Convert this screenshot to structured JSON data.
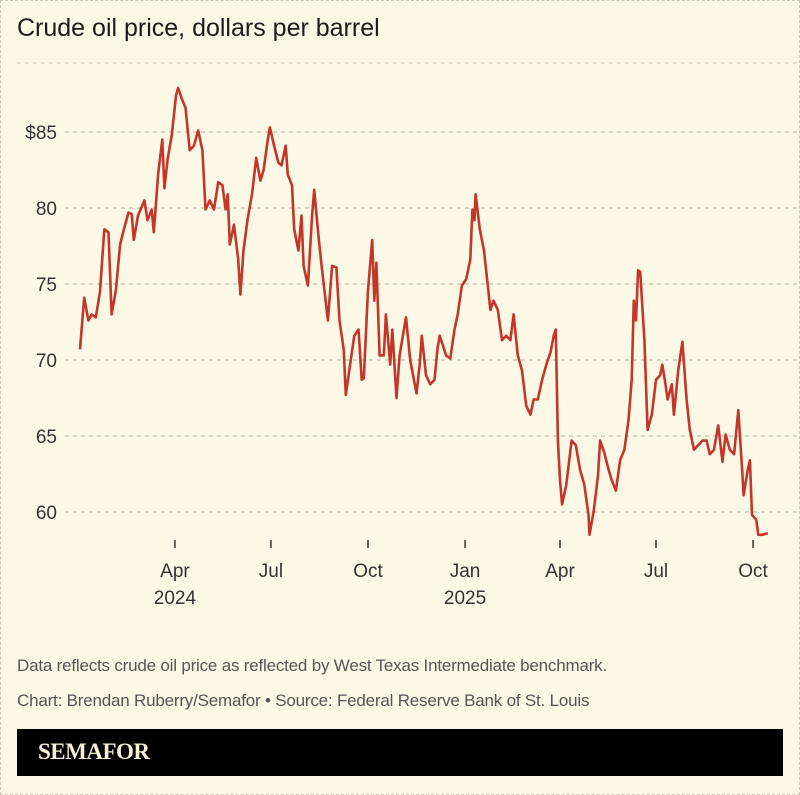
{
  "title": "Crude oil price, dollars per barrel",
  "footnote": "Data reflects crude oil price as reflected by West Texas Intermediate benchmark.",
  "credit": "Chart: Brendan Ruberry/Semafor • Source: Federal Reserve Bank of St. Louis",
  "brand": "SEMAFOR",
  "colors": {
    "line": "#c3372a",
    "background": "#fbf8e6",
    "grid": "#b5b2a3",
    "brand_bar": "#000000"
  },
  "chart_data": {
    "type": "line",
    "title": "Crude oil price, dollars per barrel",
    "xlabel": "",
    "ylabel": "",
    "ylim": [
      57.5,
      89.5
    ],
    "grid": true,
    "yticks": [
      {
        "value": 85,
        "label": "$85"
      },
      {
        "value": 80,
        "label": "80"
      },
      {
        "value": 75,
        "label": "75"
      },
      {
        "value": 70,
        "label": "70"
      },
      {
        "value": 65,
        "label": "65"
      },
      {
        "value": 60,
        "label": "60"
      }
    ],
    "xticks": [
      {
        "date": "2024-04-01",
        "label": "Apr",
        "year": "2024"
      },
      {
        "date": "2024-07-01",
        "label": "Jul",
        "year": ""
      },
      {
        "date": "2024-10-01",
        "label": "Oct",
        "year": ""
      },
      {
        "date": "2025-01-01",
        "label": "Jan",
        "year": "2025"
      },
      {
        "date": "2025-04-01",
        "label": "Apr",
        "year": ""
      },
      {
        "date": "2025-07-01",
        "label": "Jul",
        "year": ""
      },
      {
        "date": "2025-10-01",
        "label": "Oct",
        "year": ""
      }
    ],
    "series": [
      {
        "points": [
          [
            "2024-01-02",
            70.7
          ],
          [
            "2024-01-06",
            74.1
          ],
          [
            "2024-01-10",
            72.6
          ],
          [
            "2024-01-13",
            73.0
          ],
          [
            "2024-01-17",
            72.8
          ],
          [
            "2024-01-21",
            74.5
          ],
          [
            "2024-01-25",
            78.6
          ],
          [
            "2024-01-29",
            78.4
          ],
          [
            "2024-02-01",
            73.0
          ],
          [
            "2024-02-05",
            74.6
          ],
          [
            "2024-02-09",
            77.6
          ],
          [
            "2024-02-13",
            78.7
          ],
          [
            "2024-02-17",
            79.7
          ],
          [
            "2024-02-20",
            79.6
          ],
          [
            "2024-02-22",
            77.9
          ],
          [
            "2024-02-26",
            79.5
          ],
          [
            "2024-03-03",
            80.5
          ],
          [
            "2024-03-06",
            79.2
          ],
          [
            "2024-03-10",
            79.9
          ],
          [
            "2024-03-12",
            78.4
          ],
          [
            "2024-03-16",
            82.2
          ],
          [
            "2024-03-20",
            84.5
          ],
          [
            "2024-03-22",
            81.3
          ],
          [
            "2024-03-25",
            83.2
          ],
          [
            "2024-03-29",
            84.8
          ],
          [
            "2024-04-02",
            87.4
          ],
          [
            "2024-04-04",
            87.9
          ],
          [
            "2024-04-08",
            87.1
          ],
          [
            "2024-04-11",
            86.6
          ],
          [
            "2024-04-15",
            83.8
          ],
          [
            "2024-04-19",
            84.1
          ],
          [
            "2024-04-23",
            85.1
          ],
          [
            "2024-04-27",
            83.8
          ],
          [
            "2024-04-30",
            79.9
          ],
          [
            "2024-05-04",
            80.5
          ],
          [
            "2024-05-08",
            79.9
          ],
          [
            "2024-05-12",
            81.7
          ],
          [
            "2024-05-16",
            81.5
          ],
          [
            "2024-05-19",
            79.9
          ],
          [
            "2024-05-21",
            80.9
          ],
          [
            "2024-05-23",
            77.6
          ],
          [
            "2024-05-27",
            78.9
          ],
          [
            "2024-05-31",
            76.6
          ],
          [
            "2024-06-02",
            74.3
          ],
          [
            "2024-06-05",
            77.2
          ],
          [
            "2024-06-09",
            79.3
          ],
          [
            "2024-06-13",
            80.9
          ],
          [
            "2024-06-17",
            83.3
          ],
          [
            "2024-06-21",
            81.8
          ],
          [
            "2024-06-24",
            82.5
          ],
          [
            "2024-06-28",
            84.5
          ],
          [
            "2024-06-30",
            85.3
          ],
          [
            "2024-07-04",
            84.1
          ],
          [
            "2024-07-08",
            83.0
          ],
          [
            "2024-07-11",
            82.8
          ],
          [
            "2024-07-15",
            84.1
          ],
          [
            "2024-07-17",
            82.2
          ],
          [
            "2024-07-21",
            81.5
          ],
          [
            "2024-07-23",
            78.6
          ],
          [
            "2024-07-27",
            77.2
          ],
          [
            "2024-07-30",
            79.5
          ],
          [
            "2024-08-01",
            76.2
          ],
          [
            "2024-08-05",
            74.9
          ],
          [
            "2024-08-09",
            79.5
          ],
          [
            "2024-08-11",
            81.2
          ],
          [
            "2024-08-15",
            78.2
          ],
          [
            "2024-08-18",
            76.2
          ],
          [
            "2024-08-24",
            72.6
          ],
          [
            "2024-08-28",
            76.2
          ],
          [
            "2024-09-01",
            76.1
          ],
          [
            "2024-09-04",
            72.6
          ],
          [
            "2024-09-08",
            70.7
          ],
          [
            "2024-09-10",
            67.7
          ],
          [
            "2024-09-14",
            69.7
          ],
          [
            "2024-09-18",
            71.6
          ],
          [
            "2024-09-22",
            72.0
          ],
          [
            "2024-09-25",
            68.7
          ],
          [
            "2024-09-27",
            68.8
          ],
          [
            "2024-10-01",
            74.6
          ],
          [
            "2024-10-05",
            77.9
          ],
          [
            "2024-10-07",
            73.9
          ],
          [
            "2024-10-09",
            76.4
          ],
          [
            "2024-10-12",
            70.3
          ],
          [
            "2024-10-16",
            70.3
          ],
          [
            "2024-10-18",
            73.0
          ],
          [
            "2024-10-22",
            69.7
          ],
          [
            "2024-10-24",
            72.0
          ],
          [
            "2024-10-28",
            67.5
          ],
          [
            "2024-10-31",
            70.3
          ],
          [
            "2024-11-04",
            72.0
          ],
          [
            "2024-11-06",
            72.8
          ],
          [
            "2024-11-10",
            70.0
          ],
          [
            "2024-11-16",
            67.8
          ],
          [
            "2024-11-19",
            69.7
          ],
          [
            "2024-11-21",
            71.6
          ],
          [
            "2024-11-25",
            69.0
          ],
          [
            "2024-11-29",
            68.4
          ],
          [
            "2024-12-03",
            68.7
          ],
          [
            "2024-12-06",
            70.8
          ],
          [
            "2024-12-08",
            71.6
          ],
          [
            "2024-12-14",
            70.3
          ],
          [
            "2024-12-18",
            70.1
          ],
          [
            "2024-12-22",
            72.0
          ],
          [
            "2024-12-25",
            73.0
          ],
          [
            "2024-12-29",
            74.9
          ],
          [
            "2025-01-02",
            75.3
          ],
          [
            "2025-01-06",
            76.6
          ],
          [
            "2025-01-08",
            79.9
          ],
          [
            "2025-01-10",
            79.2
          ],
          [
            "2025-01-11",
            80.9
          ],
          [
            "2025-01-15",
            78.6
          ],
          [
            "2025-01-19",
            77.2
          ],
          [
            "2025-01-23",
            74.6
          ],
          [
            "2025-01-25",
            73.3
          ],
          [
            "2025-01-28",
            73.9
          ],
          [
            "2025-02-01",
            73.3
          ],
          [
            "2025-02-05",
            71.3
          ],
          [
            "2025-02-09",
            71.6
          ],
          [
            "2025-02-13",
            71.3
          ],
          [
            "2025-02-16",
            73.0
          ],
          [
            "2025-02-20",
            70.3
          ],
          [
            "2025-02-24",
            69.3
          ],
          [
            "2025-02-28",
            67.0
          ],
          [
            "2025-03-04",
            66.4
          ],
          [
            "2025-03-07",
            67.4
          ],
          [
            "2025-03-11",
            67.4
          ],
          [
            "2025-03-15",
            68.7
          ],
          [
            "2025-03-19",
            69.7
          ],
          [
            "2025-03-23",
            70.5
          ],
          [
            "2025-03-26",
            71.6
          ],
          [
            "2025-03-28",
            72.0
          ],
          [
            "2025-03-30",
            64.7
          ],
          [
            "2025-04-01",
            62.1
          ],
          [
            "2025-04-03",
            60.5
          ],
          [
            "2025-04-07",
            61.8
          ],
          [
            "2025-04-11",
            64.1
          ],
          [
            "2025-04-12",
            64.7
          ],
          [
            "2025-04-16",
            64.4
          ],
          [
            "2025-04-20",
            62.8
          ],
          [
            "2025-04-24",
            61.8
          ],
          [
            "2025-04-28",
            59.8
          ],
          [
            "2025-04-29",
            58.5
          ],
          [
            "2025-05-03",
            60.1
          ],
          [
            "2025-05-07",
            62.4
          ],
          [
            "2025-05-09",
            64.7
          ],
          [
            "2025-05-13",
            63.9
          ],
          [
            "2025-05-17",
            62.8
          ],
          [
            "2025-05-20",
            62.1
          ],
          [
            "2025-05-24",
            61.4
          ],
          [
            "2025-05-28",
            63.4
          ],
          [
            "2025-06-01",
            64.1
          ],
          [
            "2025-06-05",
            66.1
          ],
          [
            "2025-06-08",
            68.7
          ],
          [
            "2025-06-10",
            73.9
          ],
          [
            "2025-06-12",
            72.6
          ],
          [
            "2025-06-14",
            75.9
          ],
          [
            "2025-06-16",
            75.8
          ],
          [
            "2025-06-20",
            71.3
          ],
          [
            "2025-06-23",
            65.4
          ],
          [
            "2025-06-27",
            66.4
          ],
          [
            "2025-07-01",
            68.7
          ],
          [
            "2025-07-05",
            69.0
          ],
          [
            "2025-07-07",
            69.7
          ],
          [
            "2025-07-10",
            68.4
          ],
          [
            "2025-07-12",
            67.4
          ],
          [
            "2025-07-16",
            68.4
          ],
          [
            "2025-07-18",
            66.4
          ],
          [
            "2025-07-22",
            69.3
          ],
          [
            "2025-07-26",
            71.2
          ],
          [
            "2025-07-30",
            67.4
          ],
          [
            "2025-08-02",
            65.4
          ],
          [
            "2025-08-06",
            64.1
          ],
          [
            "2025-08-10",
            64.4
          ],
          [
            "2025-08-14",
            64.7
          ],
          [
            "2025-08-18",
            64.7
          ],
          [
            "2025-08-21",
            63.8
          ],
          [
            "2025-08-25",
            64.1
          ],
          [
            "2025-08-29",
            65.7
          ],
          [
            "2025-09-02",
            63.3
          ],
          [
            "2025-09-05",
            65.1
          ],
          [
            "2025-09-09",
            64.1
          ],
          [
            "2025-09-13",
            63.8
          ],
          [
            "2025-09-17",
            66.7
          ],
          [
            "2025-09-21",
            62.4
          ],
          [
            "2025-09-22",
            61.1
          ],
          [
            "2025-09-26",
            62.8
          ],
          [
            "2025-09-28",
            63.4
          ],
          [
            "2025-09-30",
            59.8
          ],
          [
            "2025-10-04",
            59.5
          ],
          [
            "2025-10-06",
            58.5
          ],
          [
            "2025-10-10",
            58.5
          ],
          [
            "2025-10-15",
            58.6
          ]
        ]
      }
    ]
  }
}
